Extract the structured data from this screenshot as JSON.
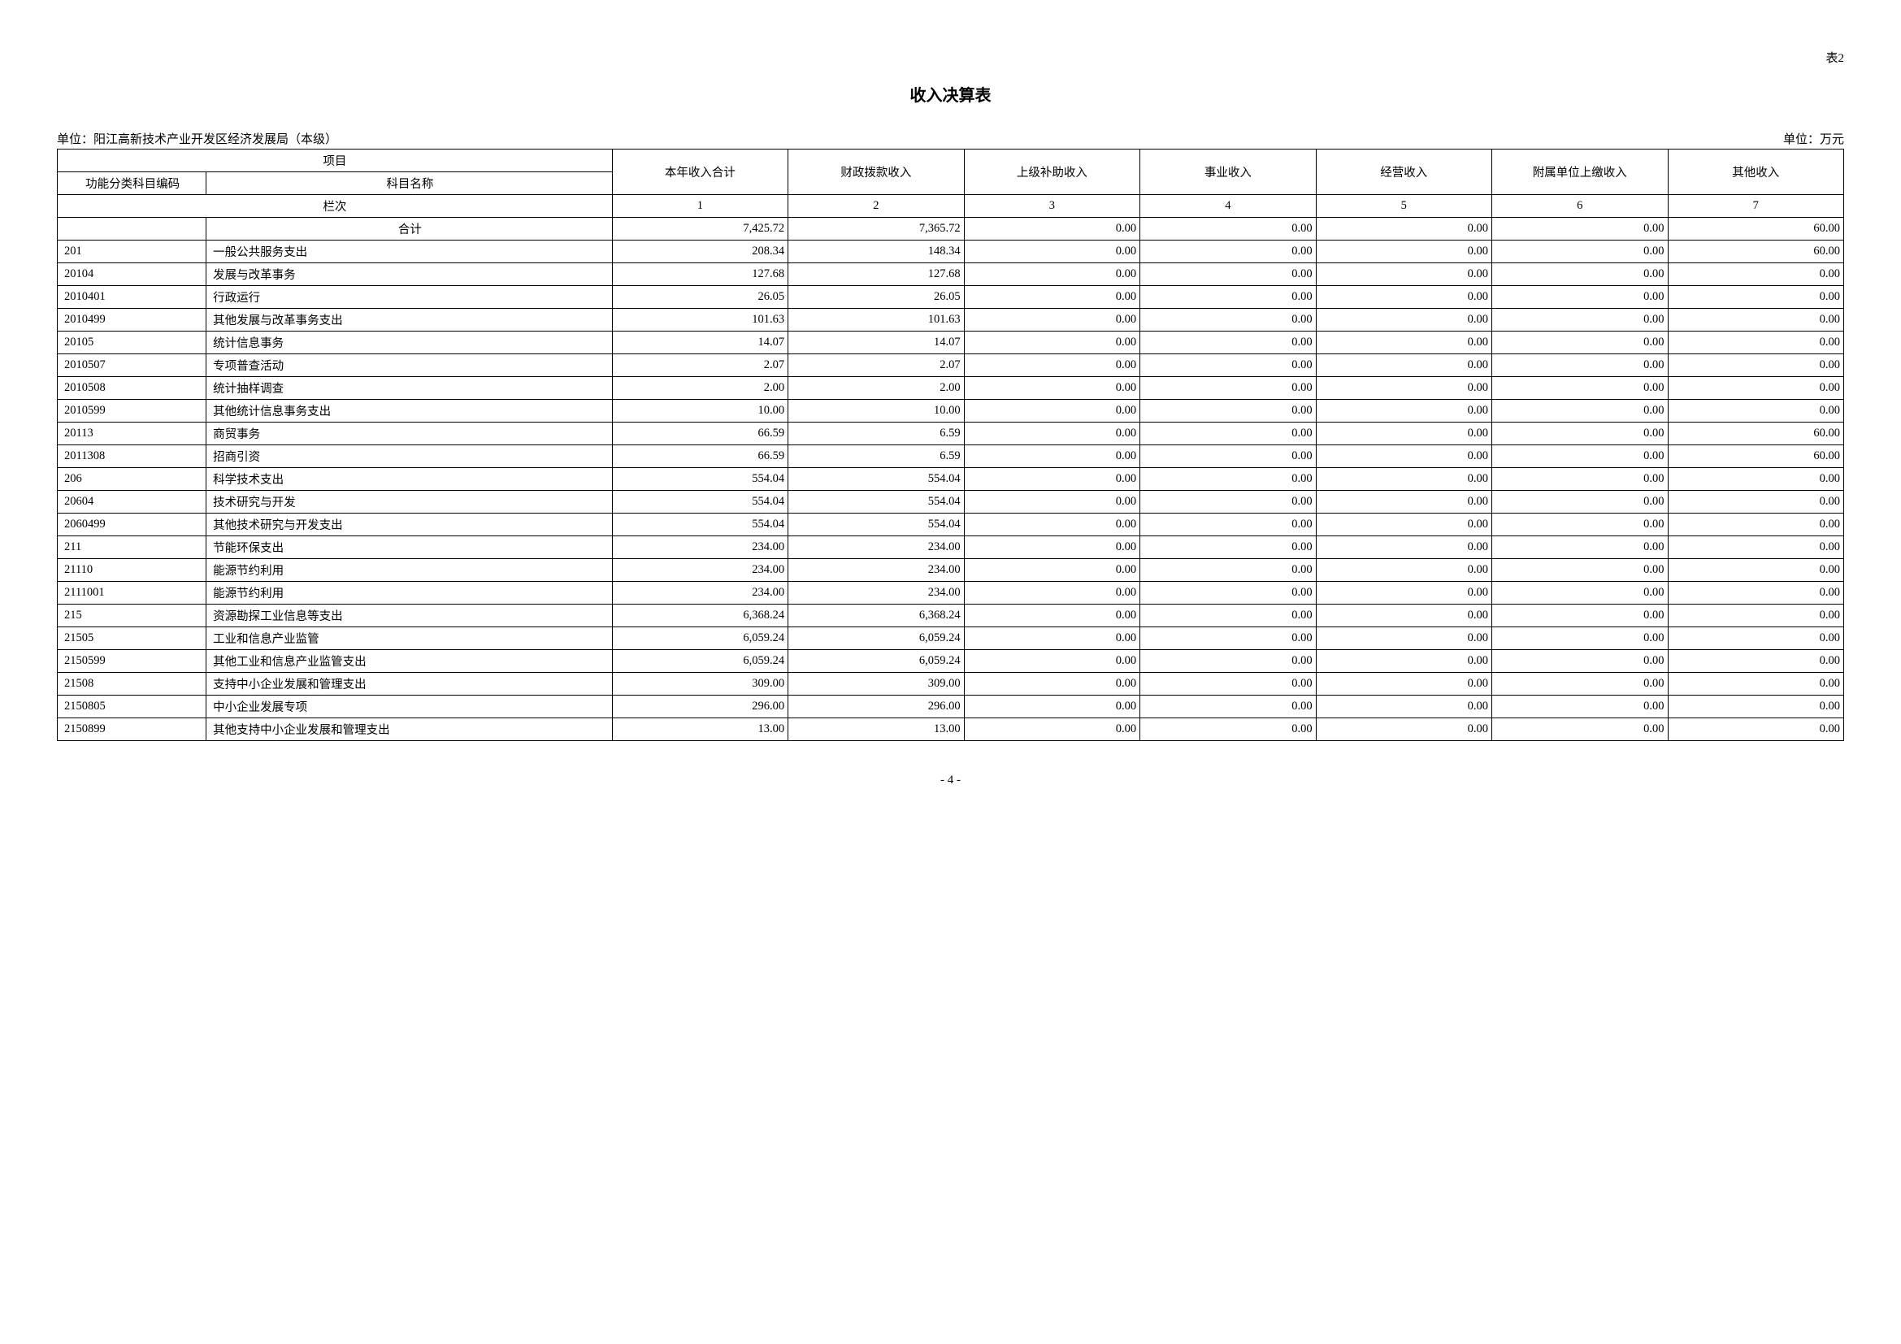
{
  "tableLabel": "表2",
  "title": "收入决算表",
  "unitLeft": "单位：阳江高新技术产业开发区经济发展局（本级）",
  "unitRight": "单位：万元",
  "pageNumber": "- 4 -",
  "header": {
    "project": "项目",
    "code": "功能分类科目编码",
    "name": "科目名称",
    "col1": "本年收入合计",
    "col2": "财政拨款收入",
    "col3": "上级补助收入",
    "col4": "事业收入",
    "col5": "经营收入",
    "col6": "附属单位上缴收入",
    "col7": "其他收入",
    "colOrder": "栏次",
    "n1": "1",
    "n2": "2",
    "n3": "3",
    "n4": "4",
    "n5": "5",
    "n6": "6",
    "n7": "7",
    "total": "合计"
  },
  "rows": [
    {
      "code": "",
      "name": "合计",
      "v": [
        "7,425.72",
        "7,365.72",
        "0.00",
        "0.00",
        "0.00",
        "0.00",
        "60.00"
      ]
    },
    {
      "code": "201",
      "name": "一般公共服务支出",
      "v": [
        "208.34",
        "148.34",
        "0.00",
        "0.00",
        "0.00",
        "0.00",
        "60.00"
      ]
    },
    {
      "code": "20104",
      "name": "发展与改革事务",
      "v": [
        "127.68",
        "127.68",
        "0.00",
        "0.00",
        "0.00",
        "0.00",
        "0.00"
      ]
    },
    {
      "code": "2010401",
      "name": "行政运行",
      "v": [
        "26.05",
        "26.05",
        "0.00",
        "0.00",
        "0.00",
        "0.00",
        "0.00"
      ]
    },
    {
      "code": "2010499",
      "name": "其他发展与改革事务支出",
      "v": [
        "101.63",
        "101.63",
        "0.00",
        "0.00",
        "0.00",
        "0.00",
        "0.00"
      ]
    },
    {
      "code": "20105",
      "name": "统计信息事务",
      "v": [
        "14.07",
        "14.07",
        "0.00",
        "0.00",
        "0.00",
        "0.00",
        "0.00"
      ]
    },
    {
      "code": "2010507",
      "name": "专项普查活动",
      "v": [
        "2.07",
        "2.07",
        "0.00",
        "0.00",
        "0.00",
        "0.00",
        "0.00"
      ]
    },
    {
      "code": "2010508",
      "name": "统计抽样调查",
      "v": [
        "2.00",
        "2.00",
        "0.00",
        "0.00",
        "0.00",
        "0.00",
        "0.00"
      ]
    },
    {
      "code": "2010599",
      "name": "其他统计信息事务支出",
      "v": [
        "10.00",
        "10.00",
        "0.00",
        "0.00",
        "0.00",
        "0.00",
        "0.00"
      ]
    },
    {
      "code": "20113",
      "name": "商贸事务",
      "v": [
        "66.59",
        "6.59",
        "0.00",
        "0.00",
        "0.00",
        "0.00",
        "60.00"
      ]
    },
    {
      "code": "2011308",
      "name": "招商引资",
      "v": [
        "66.59",
        "6.59",
        "0.00",
        "0.00",
        "0.00",
        "0.00",
        "60.00"
      ]
    },
    {
      "code": "206",
      "name": "科学技术支出",
      "v": [
        "554.04",
        "554.04",
        "0.00",
        "0.00",
        "0.00",
        "0.00",
        "0.00"
      ]
    },
    {
      "code": "20604",
      "name": "技术研究与开发",
      "v": [
        "554.04",
        "554.04",
        "0.00",
        "0.00",
        "0.00",
        "0.00",
        "0.00"
      ]
    },
    {
      "code": "2060499",
      "name": "其他技术研究与开发支出",
      "v": [
        "554.04",
        "554.04",
        "0.00",
        "0.00",
        "0.00",
        "0.00",
        "0.00"
      ]
    },
    {
      "code": "211",
      "name": "节能环保支出",
      "v": [
        "234.00",
        "234.00",
        "0.00",
        "0.00",
        "0.00",
        "0.00",
        "0.00"
      ]
    },
    {
      "code": "21110",
      "name": "能源节约利用",
      "v": [
        "234.00",
        "234.00",
        "0.00",
        "0.00",
        "0.00",
        "0.00",
        "0.00"
      ]
    },
    {
      "code": "2111001",
      "name": "能源节约利用",
      "v": [
        "234.00",
        "234.00",
        "0.00",
        "0.00",
        "0.00",
        "0.00",
        "0.00"
      ]
    },
    {
      "code": "215",
      "name": "资源勘探工业信息等支出",
      "v": [
        "6,368.24",
        "6,368.24",
        "0.00",
        "0.00",
        "0.00",
        "0.00",
        "0.00"
      ]
    },
    {
      "code": "21505",
      "name": "工业和信息产业监管",
      "v": [
        "6,059.24",
        "6,059.24",
        "0.00",
        "0.00",
        "0.00",
        "0.00",
        "0.00"
      ]
    },
    {
      "code": "2150599",
      "name": "其他工业和信息产业监管支出",
      "v": [
        "6,059.24",
        "6,059.24",
        "0.00",
        "0.00",
        "0.00",
        "0.00",
        "0.00"
      ]
    },
    {
      "code": "21508",
      "name": "支持中小企业发展和管理支出",
      "v": [
        "309.00",
        "309.00",
        "0.00",
        "0.00",
        "0.00",
        "0.00",
        "0.00"
      ]
    },
    {
      "code": "2150805",
      "name": "中小企业发展专项",
      "v": [
        "296.00",
        "296.00",
        "0.00",
        "0.00",
        "0.00",
        "0.00",
        "0.00"
      ]
    },
    {
      "code": "2150899",
      "name": "其他支持中小企业发展和管理支出",
      "v": [
        "13.00",
        "13.00",
        "0.00",
        "0.00",
        "0.00",
        "0.00",
        "0.00"
      ]
    }
  ]
}
